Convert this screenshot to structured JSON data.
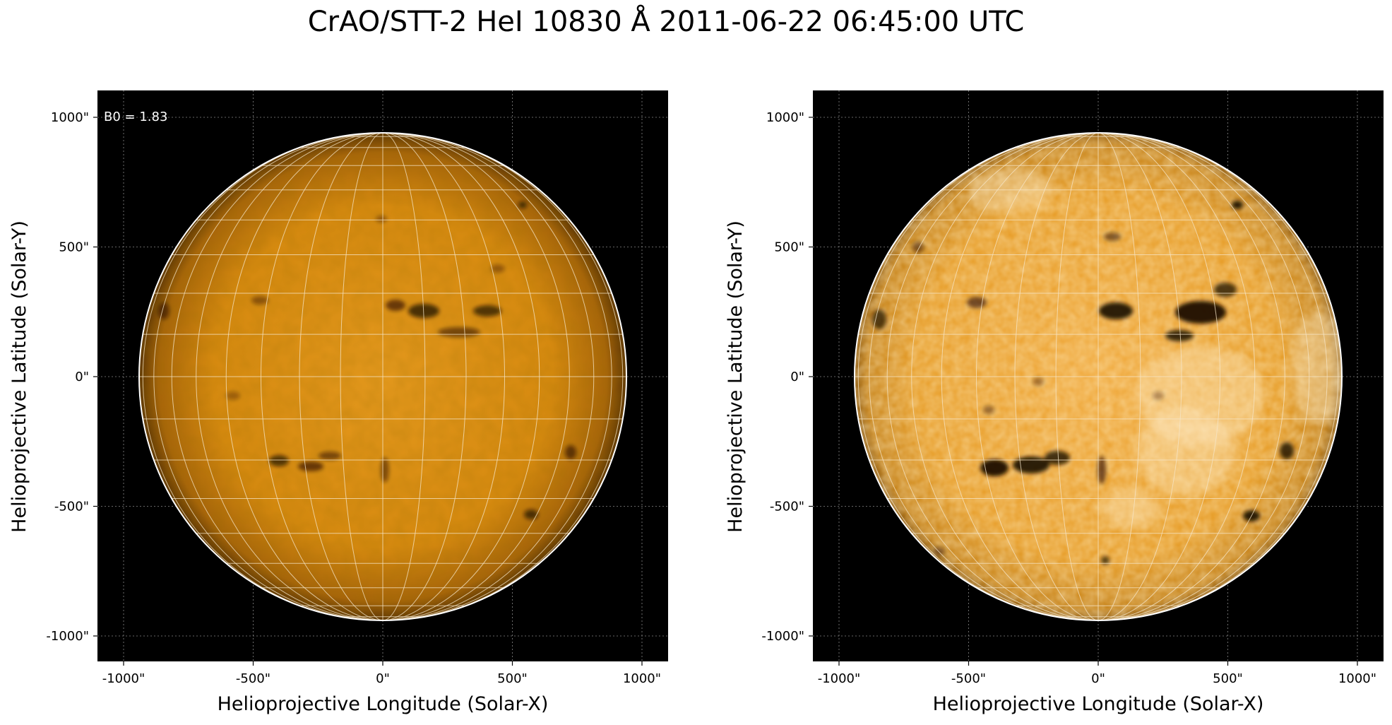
{
  "figure": {
    "title": "CrAO/STT-2 HeI 10830 Å 2011-06-22 06:45:00 UTC"
  },
  "panels": [
    {
      "id": "left",
      "annotation": "B0 = 1.83",
      "xlabel": "Helioprojective Longitude (Solar-X)",
      "ylabel": "Helioprojective Latitude (Solar-Y)",
      "xticks": [
        "-1000\"",
        "-500\"",
        "0\"",
        "500\"",
        "1000\""
      ],
      "yticks": [
        "1000\"",
        "500\"",
        "0\"",
        "-500\"",
        "-1000\""
      ],
      "contrast": "low"
    },
    {
      "id": "right",
      "annotation": "",
      "xlabel": "Helioprojective Longitude (Solar-X)",
      "ylabel": "Helioprojective Latitude (Solar-Y)",
      "xticks": [
        "-1000\"",
        "-500\"",
        "0\"",
        "500\"",
        "1000\""
      ],
      "yticks": [
        "1000\"",
        "500\"",
        "0\"",
        "-500\"",
        "-1000\""
      ],
      "contrast": "high"
    }
  ],
  "colors": {
    "disk_base": "#e0900f",
    "disk_dark": "#3a1e00",
    "background": "#000000",
    "grid": "#f5e6c8"
  }
}
